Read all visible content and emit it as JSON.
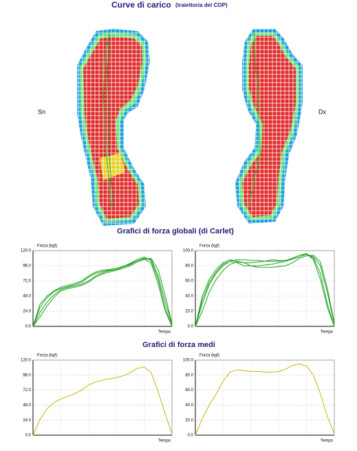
{
  "header": {
    "title": "Curve di carico",
    "subtitle": "(traiettoria del COP)"
  },
  "feet": {
    "left": "Sn",
    "right": "Dx"
  },
  "sections": [
    "Grafici di forza globali (di Carlet)",
    "Grafici di forza medi"
  ],
  "chart_data": [
    {
      "type": "line",
      "y_label": "Forza (kgf)",
      "x_label": "Tempo",
      "ylim": [
        0,
        120
      ],
      "yticks": [
        {
          "value": 0,
          "label": "0.0"
        },
        {
          "value": 24,
          "label": "24.0"
        },
        {
          "value": 48,
          "label": "48.0"
        },
        {
          "value": 72,
          "label": "72.0"
        },
        {
          "value": 96,
          "label": "96.0"
        },
        {
          "value": 120,
          "label": "120.0"
        }
      ],
      "grid": true,
      "series": [
        {
          "color": "#1aa01a",
          "values": [
            0,
            30,
            45,
            55,
            60,
            63,
            66,
            70,
            78,
            84,
            87,
            89,
            92,
            95,
            100,
            106,
            110,
            104,
            75,
            30,
            0
          ]
        },
        {
          "color": "#1aa01a",
          "values": [
            0,
            22,
            38,
            50,
            58,
            62,
            64,
            67,
            72,
            80,
            85,
            88,
            90,
            94,
            98,
            104,
            108,
            106,
            80,
            40,
            3
          ]
        },
        {
          "color": "#1aa01a",
          "values": [
            0,
            15,
            32,
            46,
            56,
            60,
            62,
            65,
            70,
            78,
            83,
            86,
            89,
            92,
            96,
            102,
            106,
            108,
            90,
            50,
            5
          ]
        },
        {
          "color": "#1aa01a",
          "values": [
            0,
            35,
            48,
            56,
            62,
            65,
            68,
            72,
            80,
            86,
            89,
            90,
            92,
            95,
            99,
            104,
            107,
            100,
            68,
            25,
            0
          ]
        }
      ]
    },
    {
      "type": "line",
      "y_label": "Forza (kgf)",
      "x_label": "Tempo",
      "ylim": [
        0,
        100
      ],
      "yticks": [
        {
          "value": 0,
          "label": "0.0"
        },
        {
          "value": 20,
          "label": "20.0"
        },
        {
          "value": 40,
          "label": "40.0"
        },
        {
          "value": 60,
          "label": "60.0"
        },
        {
          "value": 80,
          "label": "80.0"
        },
        {
          "value": 100,
          "label": "100.0"
        }
      ],
      "grid": true,
      "series": [
        {
          "color": "#1aa01a",
          "values": [
            0,
            40,
            62,
            75,
            84,
            88,
            86,
            84,
            84,
            85,
            86,
            88,
            87,
            87,
            90,
            94,
            96,
            90,
            70,
            30,
            0
          ]
        },
        {
          "color": "#1aa01a",
          "values": [
            0,
            30,
            55,
            70,
            80,
            86,
            88,
            88,
            87,
            87,
            86,
            86,
            86,
            87,
            89,
            92,
            95,
            92,
            80,
            45,
            3
          ]
        },
        {
          "color": "#1aa01a",
          "values": [
            0,
            20,
            45,
            62,
            74,
            82,
            85,
            84,
            80,
            78,
            78,
            78,
            79,
            80,
            84,
            90,
            93,
            94,
            85,
            50,
            5
          ]
        },
        {
          "color": "#1aa01a",
          "values": [
            0,
            35,
            58,
            72,
            82,
            86,
            84,
            80,
            80,
            80,
            81,
            82,
            84,
            86,
            89,
            92,
            96,
            88,
            62,
            25,
            0
          ]
        }
      ]
    },
    {
      "type": "line",
      "y_label": "Forza (kgf)",
      "x_label": "Tempo",
      "ylim": [
        0,
        120
      ],
      "yticks": [
        {
          "value": 0,
          "label": "0.0"
        },
        {
          "value": 24,
          "label": "24.0"
        },
        {
          "value": 48,
          "label": "48.0"
        },
        {
          "value": 72,
          "label": "72.0"
        },
        {
          "value": 96,
          "label": "96.0"
        },
        {
          "value": 120,
          "label": "120.0"
        }
      ],
      "grid": true,
      "series": [
        {
          "color": "#c8b400",
          "values": [
            0,
            25,
            42,
            52,
            58,
            62,
            66,
            72,
            80,
            85,
            88,
            90,
            92,
            95,
            100,
            107,
            109,
            100,
            70,
            35,
            2
          ]
        }
      ]
    },
    {
      "type": "line",
      "y_label": "Forza (kgf)",
      "x_label": "Tempo",
      "ylim": [
        0,
        100
      ],
      "yticks": [
        {
          "value": 0,
          "label": "0.0"
        },
        {
          "value": 20,
          "label": "20.0"
        },
        {
          "value": 40,
          "label": "40.0"
        },
        {
          "value": 60,
          "label": "60.0"
        },
        {
          "value": 80,
          "label": "80.0"
        },
        {
          "value": 100,
          "label": "100.0"
        }
      ],
      "grid": true,
      "series": [
        {
          "color": "#c8b400",
          "values": [
            0,
            22,
            40,
            55,
            72,
            84,
            87,
            86,
            85,
            85,
            84,
            84,
            85,
            88,
            93,
            95,
            92,
            80,
            55,
            25,
            2
          ]
        }
      ]
    }
  ]
}
